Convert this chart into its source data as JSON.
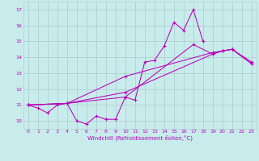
{
  "xlabel": "Windchill (Refroidissement éolien,°C)",
  "bg_color": "#c8ecec",
  "grid_color": "#b0d0d0",
  "line_color": "#bb00bb",
  "xlim": [
    -0.5,
    23.5
  ],
  "ylim": [
    9.5,
    17.5
  ],
  "yticks": [
    10,
    11,
    12,
    13,
    14,
    15,
    16,
    17
  ],
  "xticks": [
    0,
    1,
    2,
    3,
    4,
    5,
    6,
    7,
    8,
    9,
    10,
    11,
    12,
    13,
    14,
    15,
    16,
    17,
    18,
    19,
    20,
    21,
    22,
    23
  ],
  "line1_x": [
    0,
    1,
    2,
    3,
    4,
    5,
    6,
    7,
    8,
    9,
    10,
    11,
    12,
    13,
    14,
    15,
    16,
    17,
    18
  ],
  "line1_y": [
    11.0,
    10.8,
    10.5,
    11.0,
    11.1,
    10.0,
    9.8,
    10.3,
    10.1,
    10.1,
    11.5,
    11.3,
    13.7,
    13.8,
    14.7,
    16.2,
    15.7,
    17.0,
    15.0
  ],
  "line2_x": [
    0,
    4,
    10,
    17,
    19,
    20,
    21,
    23
  ],
  "line2_y": [
    11.0,
    11.1,
    11.5,
    14.8,
    14.2,
    14.4,
    14.5,
    13.6
  ],
  "line3_x": [
    0,
    4,
    10,
    19,
    20,
    21,
    23
  ],
  "line3_y": [
    11.0,
    11.1,
    11.8,
    14.2,
    14.4,
    14.5,
    13.6
  ],
  "line4_x": [
    0,
    4,
    10,
    19,
    20,
    21,
    23
  ],
  "line4_y": [
    11.0,
    11.1,
    12.8,
    14.3,
    14.4,
    14.5,
    13.7
  ]
}
